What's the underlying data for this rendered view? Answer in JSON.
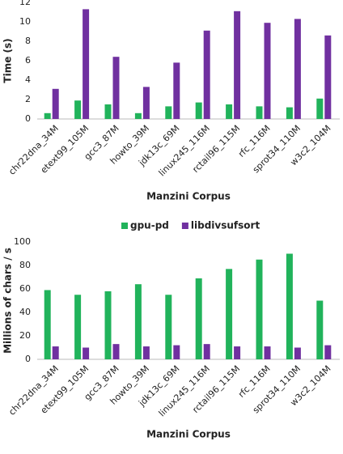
{
  "chart_data": [
    {
      "type": "bar",
      "xlabel": "Manzini Corpus",
      "ylabel": "Time (s)",
      "categories": [
        "chr22dna_34M",
        "etext99_105M",
        "gcc3_87M",
        "howto_39M",
        "jdk13c_69M",
        "linux245_116M",
        "rctail96_115M",
        "rfc_116M",
        "sprot34_110M",
        "w3c2_104M"
      ],
      "series": [
        {
          "color": "#21b35b",
          "values": [
            0.6,
            1.9,
            1.5,
            0.6,
            1.3,
            1.7,
            1.5,
            1.3,
            1.2,
            2.1
          ]
        },
        {
          "color": "#7030a0",
          "values": [
            3.1,
            11.3,
            6.4,
            3.3,
            5.8,
            9.1,
            11.1,
            9.9,
            10.3,
            8.6
          ]
        }
      ],
      "ylim": [
        0,
        12
      ],
      "yticks": [
        0,
        2,
        4,
        6,
        8,
        10,
        12
      ]
    },
    {
      "type": "bar",
      "xlabel": "Manzini Corpus",
      "ylabel": "Millions of chars / s",
      "legend": "top",
      "categories": [
        "chr22dna_34M",
        "etext99_105M",
        "gcc3_87M",
        "howto_39M",
        "jdk13c_69M",
        "linux245_116M",
        "rctail96_115M",
        "rfc_116M",
        "sprot34_110M",
        "w3c2_104M"
      ],
      "series": [
        {
          "name": "gpu-pd",
          "color": "#21b35b",
          "values": [
            59,
            55,
            58,
            64,
            55,
            69,
            77,
            85,
            90,
            50
          ]
        },
        {
          "name": "libdivsufsort",
          "color": "#7030a0",
          "values": [
            11,
            10,
            13,
            11,
            12,
            13,
            11,
            11,
            10,
            12
          ]
        }
      ],
      "ylim": [
        0,
        100
      ],
      "yticks": [
        0,
        20,
        40,
        60,
        80,
        100
      ]
    }
  ]
}
